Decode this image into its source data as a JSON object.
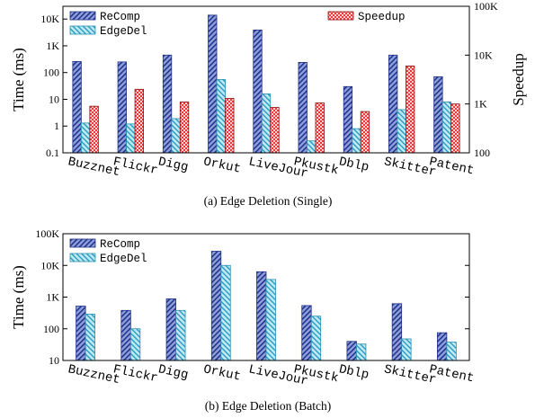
{
  "chart_data": [
    {
      "type": "bar",
      "caption": "(a)  Edge Deletion (Single)",
      "ylabel": "Time (ms)",
      "ylabel_right": "Speedup",
      "yscale": "log",
      "ylim": [
        0.1,
        30000
      ],
      "yticks": [
        "0.1",
        "1",
        "10",
        "100",
        "1K",
        "10K"
      ],
      "ylim_right": [
        100,
        100000
      ],
      "yticks_right": [
        "100",
        "1K",
        "10K",
        "100K"
      ],
      "categories": [
        "Buzznet",
        "Flickr",
        "Digg",
        "Orkut",
        "LiveJour",
        "Pkustk",
        "Dblp",
        "Skitter",
        "Patent"
      ],
      "series": [
        {
          "name": "ReComp",
          "axis": "left",
          "values": [
            260,
            250,
            450,
            14000,
            3900,
            240,
            30,
            450,
            70
          ]
        },
        {
          "name": "EdgeDel",
          "axis": "left",
          "values": [
            1.3,
            1.2,
            1.9,
            55,
            16,
            0.28,
            0.8,
            4.1,
            8
          ]
        },
        {
          "name": "Speedup",
          "axis": "right",
          "values": [
            900,
            2000,
            1100,
            1300,
            850,
            1050,
            700,
            6000,
            1000
          ]
        }
      ],
      "legend": [
        "top-left",
        "top-right"
      ]
    },
    {
      "type": "bar",
      "caption": "(b)  Edge Deletion (Batch)",
      "ylabel": "Time (ms)",
      "yscale": "log",
      "ylim": [
        10,
        100000
      ],
      "yticks": [
        "10",
        "100",
        "1K",
        "10K",
        "100K"
      ],
      "categories": [
        "Buzznet",
        "Flickr",
        "Digg",
        "Orkut",
        "LiveJour",
        "Pkustk",
        "Dblp",
        "Skitter",
        "Patent"
      ],
      "series": [
        {
          "name": "ReComp",
          "values": [
            520,
            380,
            880,
            28000,
            6300,
            540,
            40,
            620,
            75
          ]
        },
        {
          "name": "EdgeDel",
          "values": [
            290,
            100,
            380,
            10000,
            3600,
            250,
            33,
            48,
            38
          ]
        }
      ],
      "legend": "top-left"
    }
  ],
  "colors": {
    "recomp_fill": "#5a73c4",
    "recomp_stroke": "#1f2f82",
    "edgedel_fill": "#7fd3e6",
    "edgedel_stroke": "#2b8fb0",
    "speedup_fill": "#e03a3a",
    "speedup_stroke": "#8c1010"
  }
}
